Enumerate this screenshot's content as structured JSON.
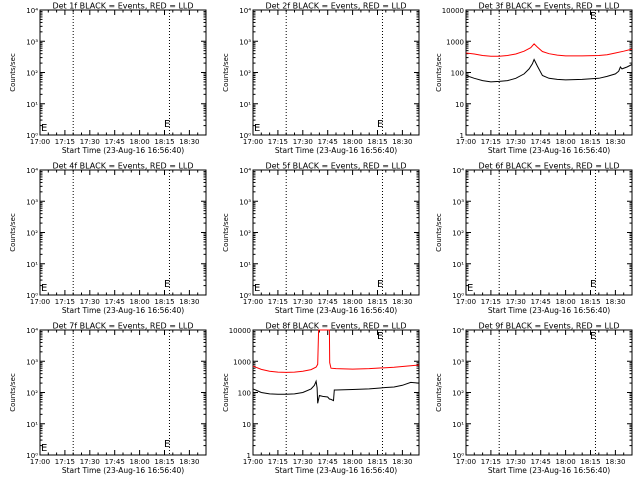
{
  "page": {
    "background": "#ffffff",
    "axis_color": "#000000",
    "events_color": "#000000",
    "lld_color": "#ff0000"
  },
  "chart_data": [
    {
      "type": "line",
      "title": "Det 1f BLACK = Events, RED = LLD",
      "xlabel": "Start Time (23-Aug-16 16:56:40)",
      "ylabel": "Counts/sec",
      "y_scale": "log",
      "ylim": [
        1,
        10000
      ],
      "y_tick_labels": [
        "10⁰",
        "10¹",
        "10²",
        "10³",
        "10⁴"
      ],
      "xlim": [
        "17:00",
        "18:40"
      ],
      "x_tick_labels": [
        "17:00",
        "17:15",
        "17:30",
        "17:45",
        "18:00",
        "18:15",
        "18:30"
      ],
      "dotted_vlines": [
        "17:20",
        "18:18"
      ],
      "markers": [
        "E",
        "E"
      ],
      "series": []
    },
    {
      "type": "line",
      "title": "Det 2f BLACK = Events, RED = LLD",
      "xlabel": "Start Time (23-Aug-16 16:56:40)",
      "ylabel": "Counts/sec",
      "y_scale": "log",
      "ylim": [
        1,
        10000
      ],
      "y_tick_labels": [
        "10⁰",
        "10¹",
        "10²",
        "10³",
        "10⁴"
      ],
      "xlim": [
        "17:00",
        "18:40"
      ],
      "x_tick_labels": [
        "17:00",
        "17:15",
        "17:30",
        "17:45",
        "18:00",
        "18:15",
        "18:30"
      ],
      "dotted_vlines": [
        "17:20",
        "18:18"
      ],
      "markers": [
        "E",
        "E"
      ],
      "series": []
    },
    {
      "type": "line",
      "title": "Det 3f BLACK = Events, RED = LLD",
      "xlabel": "Start Time (23-Aug-16 16:56:40)",
      "ylabel": "Counts/sec",
      "y_scale": "log",
      "ylim": [
        1,
        10000
      ],
      "y_tick_labels": [
        "1",
        "10",
        "100",
        "1000",
        "10000"
      ],
      "xlim": [
        "17:00",
        "18:40"
      ],
      "x_tick_labels": [
        "17:00",
        "17:15",
        "17:30",
        "17:45",
        "18:00",
        "18:15",
        "18:30"
      ],
      "dotted_vlines": [
        "17:20",
        "18:18"
      ],
      "markers": [
        "E"
      ],
      "series": [
        {
          "color": "#ff0000",
          "points": [
            [
              0,
              420
            ],
            [
              5,
              390
            ],
            [
              10,
              350
            ],
            [
              15,
              330
            ],
            [
              20,
              330
            ],
            [
              25,
              350
            ],
            [
              30,
              390
            ],
            [
              35,
              480
            ],
            [
              39,
              620
            ],
            [
              41,
              820
            ],
            [
              43,
              650
            ],
            [
              46,
              470
            ],
            [
              50,
              400
            ],
            [
              55,
              360
            ],
            [
              60,
              340
            ],
            [
              70,
              340
            ],
            [
              80,
              350
            ],
            [
              85,
              370
            ],
            [
              90,
              420
            ],
            [
              95,
              480
            ],
            [
              100,
              560
            ]
          ]
        },
        {
          "color": "#000000",
          "points": [
            [
              0,
              80
            ],
            [
              5,
              65
            ],
            [
              10,
              55
            ],
            [
              15,
              50
            ],
            [
              20,
              52
            ],
            [
              25,
              55
            ],
            [
              30,
              65
            ],
            [
              35,
              90
            ],
            [
              38,
              130
            ],
            [
              40,
              190
            ],
            [
              41,
              260
            ],
            [
              43,
              160
            ],
            [
              46,
              80
            ],
            [
              50,
              65
            ],
            [
              55,
              60
            ],
            [
              60,
              58
            ],
            [
              70,
              60
            ],
            [
              80,
              65
            ],
            [
              85,
              75
            ],
            [
              90,
              90
            ],
            [
              92,
              110
            ],
            [
              93,
              150
            ],
            [
              94,
              130
            ],
            [
              97,
              150
            ],
            [
              100,
              180
            ]
          ]
        }
      ]
    },
    {
      "type": "line",
      "title": "Det 4f BLACK = Events, RED = LLD",
      "xlabel": "Start Time (23-Aug-16 16:56:40)",
      "ylabel": "Counts/sec",
      "y_scale": "log",
      "ylim": [
        1,
        10000
      ],
      "y_tick_labels": [
        "10⁰",
        "10¹",
        "10²",
        "10³",
        "10⁴"
      ],
      "xlim": [
        "17:00",
        "18:40"
      ],
      "x_tick_labels": [
        "17:00",
        "17:15",
        "17:30",
        "17:45",
        "18:00",
        "18:15",
        "18:30"
      ],
      "dotted_vlines": [
        "17:20",
        "18:18"
      ],
      "markers": [
        "E",
        "E"
      ],
      "series": []
    },
    {
      "type": "line",
      "title": "Det 5f BLACK = Events, RED = LLD",
      "xlabel": "Start Time (23-Aug-16 16:56:40)",
      "ylabel": "Counts/sec",
      "y_scale": "log",
      "ylim": [
        1,
        10000
      ],
      "y_tick_labels": [
        "10⁰",
        "10¹",
        "10²",
        "10³",
        "10⁴"
      ],
      "xlim": [
        "17:00",
        "18:40"
      ],
      "x_tick_labels": [
        "17:00",
        "17:15",
        "17:30",
        "17:45",
        "18:00",
        "18:15",
        "18:30"
      ],
      "dotted_vlines": [
        "17:20",
        "18:18"
      ],
      "markers": [
        "E",
        "E"
      ],
      "series": []
    },
    {
      "type": "line",
      "title": "Det 6f BLACK = Events, RED = LLD",
      "xlabel": "Start Time (23-Aug-16 16:56:40)",
      "ylabel": "Counts/sec",
      "y_scale": "log",
      "ylim": [
        1,
        10000
      ],
      "y_tick_labels": [
        "10⁰",
        "10¹",
        "10²",
        "10³",
        "10⁴"
      ],
      "xlim": [
        "17:00",
        "18:40"
      ],
      "x_tick_labels": [
        "17:00",
        "17:15",
        "17:30",
        "17:45",
        "18:00",
        "18:15",
        "18:30"
      ],
      "dotted_vlines": [
        "17:20",
        "18:18"
      ],
      "markers": [
        "E",
        "E"
      ],
      "series": []
    },
    {
      "type": "line",
      "title": "Det 7f BLACK = Events, RED = LLD",
      "xlabel": "Start Time (23-Aug-16 16:56:40)",
      "ylabel": "Counts/sec",
      "y_scale": "log",
      "ylim": [
        1,
        10000
      ],
      "y_tick_labels": [
        "10⁰",
        "10¹",
        "10²",
        "10³",
        "10⁴"
      ],
      "xlim": [
        "17:00",
        "18:40"
      ],
      "x_tick_labels": [
        "17:00",
        "17:15",
        "17:30",
        "17:45",
        "18:00",
        "18:15",
        "18:30"
      ],
      "dotted_vlines": [
        "17:20",
        "18:18"
      ],
      "markers": [
        "E",
        "E"
      ],
      "series": []
    },
    {
      "type": "line",
      "title": "Det 8f BLACK = Events, RED = LLD",
      "xlabel": "Start Time (23-Aug-16 16:56:40)",
      "ylabel": "Counts/sec",
      "y_scale": "log",
      "ylim": [
        1,
        10000
      ],
      "y_tick_labels": [
        "1",
        "10",
        "100",
        "1000",
        "10000"
      ],
      "xlim": [
        "17:00",
        "18:40"
      ],
      "x_tick_labels": [
        "17:00",
        "17:15",
        "17:30",
        "17:45",
        "18:00",
        "18:15",
        "18:30"
      ],
      "dotted_vlines": [
        "17:20",
        "18:18"
      ],
      "markers": [
        "E"
      ],
      "series": [
        {
          "color": "#ff0000",
          "points": [
            [
              0,
              700
            ],
            [
              5,
              550
            ],
            [
              10,
              480
            ],
            [
              15,
              450
            ],
            [
              20,
              440
            ],
            [
              25,
              450
            ],
            [
              30,
              480
            ],
            [
              35,
              540
            ],
            [
              38,
              650
            ],
            [
              39,
              800
            ],
            [
              39.5,
              10000
            ],
            [
              46,
              10000
            ],
            [
              46.2,
              900
            ],
            [
              47,
              600
            ],
            [
              50,
              580
            ],
            [
              60,
              560
            ],
            [
              70,
              580
            ],
            [
              80,
              620
            ],
            [
              85,
              640
            ],
            [
              90,
              680
            ],
            [
              95,
              720
            ],
            [
              100,
              760
            ]
          ]
        },
        {
          "color": "#000000",
          "points": [
            [
              0,
              130
            ],
            [
              5,
              100
            ],
            [
              10,
              90
            ],
            [
              15,
              88
            ],
            [
              20,
              88
            ],
            [
              25,
              90
            ],
            [
              30,
              100
            ],
            [
              35,
              130
            ],
            [
              37,
              170
            ],
            [
              38,
              230
            ],
            [
              38.6,
              140
            ],
            [
              39,
              45
            ],
            [
              40,
              80
            ],
            [
              42,
              75
            ],
            [
              45,
              72
            ],
            [
              46,
              62
            ],
            [
              47,
              60
            ],
            [
              48.5,
              55
            ],
            [
              49,
              120
            ],
            [
              50,
              120
            ],
            [
              60,
              125
            ],
            [
              70,
              130
            ],
            [
              80,
              145
            ],
            [
              85,
              150
            ],
            [
              90,
              170
            ],
            [
              95,
              210
            ],
            [
              100,
              200
            ]
          ]
        }
      ]
    },
    {
      "type": "line",
      "title": "Det 9f BLACK = Events, RED = LLD",
      "xlabel": "Start Time (23-Aug-16 16:56:40)",
      "ylabel": "Counts/sec",
      "y_scale": "log",
      "ylim": [
        1,
        10000
      ],
      "y_tick_labels": [
        "10⁰",
        "10¹",
        "10²",
        "10³",
        "10⁴"
      ],
      "xlim": [
        "17:00",
        "18:40"
      ],
      "x_tick_labels": [
        "17:00",
        "17:15",
        "17:30",
        "17:45",
        "18:00",
        "18:15",
        "18:30"
      ],
      "dotted_vlines": [
        "17:20",
        "18:18"
      ],
      "markers": [
        "E"
      ],
      "series": []
    }
  ]
}
